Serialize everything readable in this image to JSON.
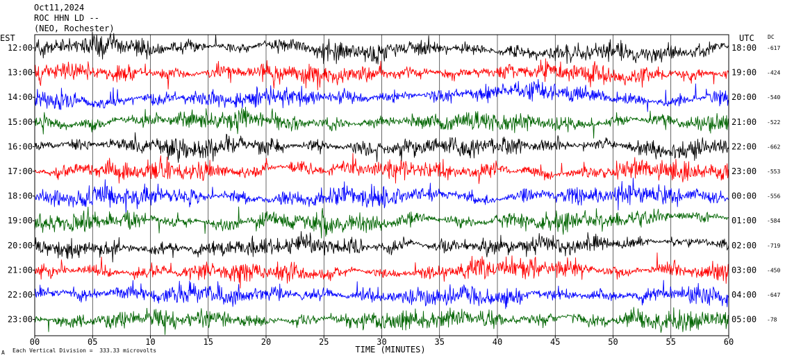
{
  "header": {
    "date": "Oct11,2024",
    "station": "ROC HHN LD --",
    "network": "(NEO, Rochester)"
  },
  "left_axis_title": "EST",
  "right_axis_title": "UTC",
  "dc_title": "DC",
  "footer_note": "Each Vertical Division =  333.33 microvolts",
  "footer_mark": "A",
  "chart_data": {
    "type": "line",
    "title": "",
    "xlabel": "TIME (MINUTES)",
    "ylabel": "",
    "xlim": [
      0,
      60
    ],
    "x_ticks": [
      "00",
      "05",
      "10",
      "15",
      "20",
      "25",
      "30",
      "35",
      "40",
      "45",
      "50",
      "55",
      "60"
    ],
    "grid": true,
    "colors": [
      "#000000",
      "#ff0000",
      "#0000ff",
      "#006400"
    ],
    "rows": [
      {
        "est": "12:00",
        "utc": "18:00",
        "dc": "-617"
      },
      {
        "est": "13:00",
        "utc": "19:00",
        "dc": "-424"
      },
      {
        "est": "14:00",
        "utc": "20:00",
        "dc": "-540"
      },
      {
        "est": "15:00",
        "utc": "21:00",
        "dc": "-522"
      },
      {
        "est": "16:00",
        "utc": "22:00",
        "dc": "-662"
      },
      {
        "est": "17:00",
        "utc": "23:00",
        "dc": "-553"
      },
      {
        "est": "18:00",
        "utc": "00:00",
        "dc": "-556"
      },
      {
        "est": "19:00",
        "utc": "01:00",
        "dc": "-584"
      },
      {
        "est": "20:00",
        "utc": "02:00",
        "dc": "-719"
      },
      {
        "est": "21:00",
        "utc": "03:00",
        "dc": "-450"
      },
      {
        "est": "22:00",
        "utc": "04:00",
        "dc": "-647"
      },
      {
        "est": "23:00",
        "utc": "05:00",
        "dc": "-78"
      }
    ]
  }
}
